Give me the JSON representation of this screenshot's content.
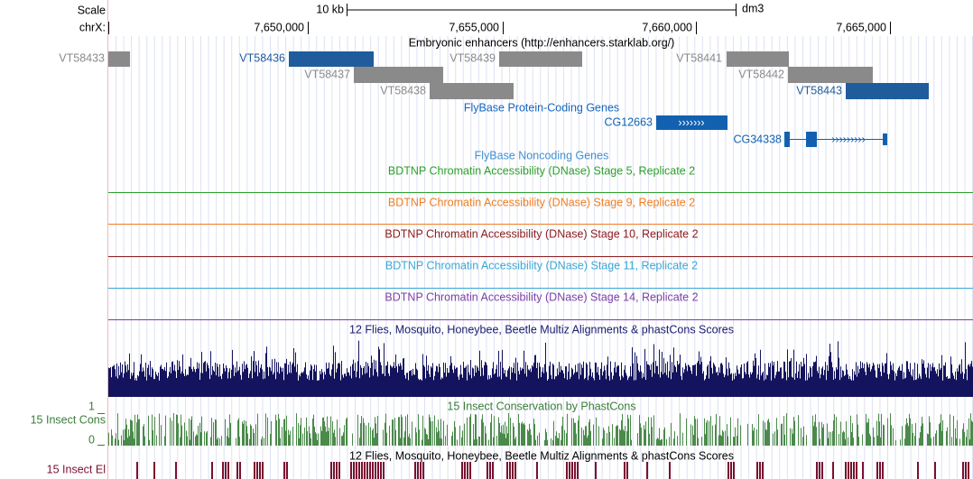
{
  "scale": {
    "label": "Scale",
    "size": "10 kb",
    "assembly": "dm3"
  },
  "position": {
    "chrom": "chrX:",
    "ticks": [
      "7,650,000",
      "7,655,000",
      "7,660,000",
      "7,665,000"
    ]
  },
  "enhancers": {
    "title": "Embryonic enhancers (http://enhancers.starklab.org/)",
    "items": [
      {
        "name": "VT58433"
      },
      {
        "name": "VT58436"
      },
      {
        "name": "VT58437"
      },
      {
        "name": "VT58439"
      },
      {
        "name": "VT58438"
      },
      {
        "name": "VT58441"
      },
      {
        "name": "VT58442"
      },
      {
        "name": "VT58443"
      }
    ]
  },
  "coding_genes": {
    "title": "FlyBase Protein-Coding Genes",
    "genes": [
      "CG12663",
      "CG34338"
    ]
  },
  "noncoding_genes": {
    "title": "FlyBase Noncoding Genes"
  },
  "dnase_tracks": [
    "BDTNP Chromatin Accessibility (DNase) Stage 5, Replicate 2",
    "BDTNP Chromatin Accessibility (DNase) Stage 9, Replicate 2",
    "BDTNP Chromatin Accessibility (DNase) Stage 10, Replicate 2",
    "BDTNP Chromatin Accessibility (DNase) Stage 11, Replicate 2",
    "BDTNP Chromatin Accessibility (DNase) Stage 14, Replicate 2"
  ],
  "multiz": {
    "title": "12 Flies, Mosquito, Honeybee, Beetle Multiz Alignments & phastCons Scores"
  },
  "phastcons": {
    "title": "15 Insect Conservation by PhastCons",
    "label": "15 Insect Cons",
    "max": "1",
    "min": "0"
  },
  "elements": {
    "title": "12 Flies, Mosquito, Honeybee, Beetle Multiz Alignments & phastCons Scores",
    "label": "15 Insect El"
  }
}
